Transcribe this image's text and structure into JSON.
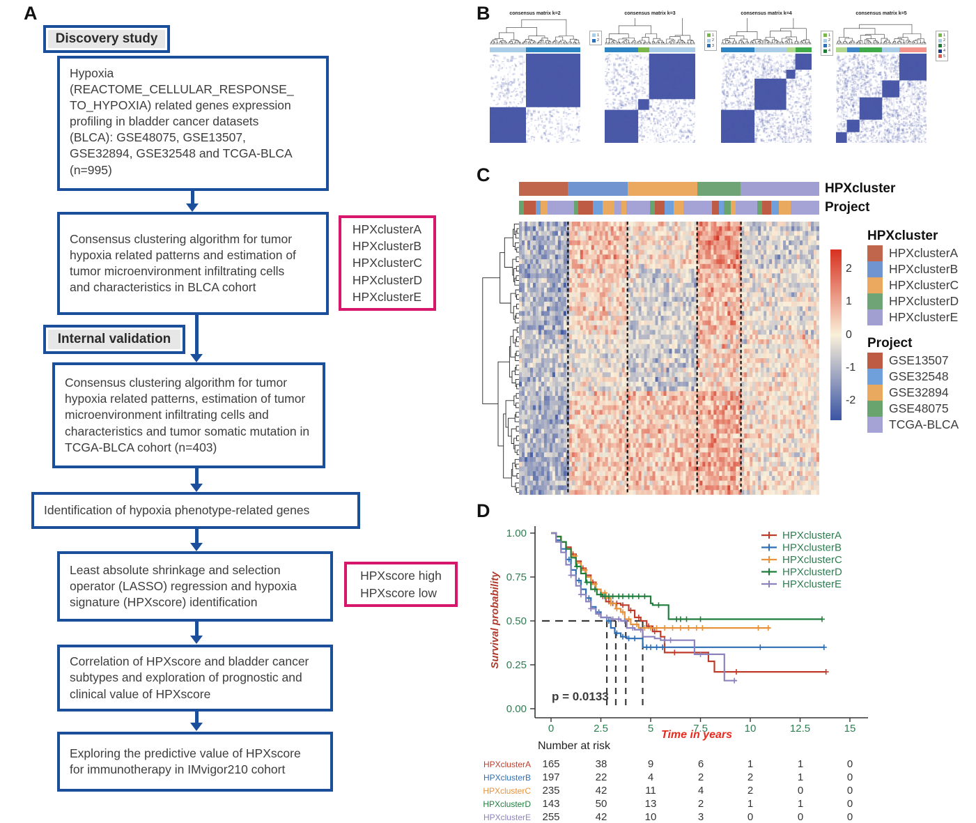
{
  "panels": {
    "a": "A",
    "b": "B",
    "c": "C",
    "d": "D"
  },
  "flowchart": {
    "stage1_label": "Discovery study",
    "stage2_label": "Internal validation",
    "boxes": [
      {
        "text": "Hypoxia\n(REACTOME_CELLULAR_RESPONSE_\nTO_HYPOXIA) related genes expression\nprofiling in bladder cancer datasets\n(BLCA): GSE48075, GSE13507,\nGSE32894, GSE32548 and TCGA-BLCA\n(n=995)"
      },
      {
        "text": "Consensus clustering algorithm for tumor\nhypoxia related patterns and estimation of\ntumor microenvironment infiltrating cells\nand characteristics in BLCA cohort"
      },
      {
        "text": "Consensus clustering algorithm for tumor\nhypoxia related patterns, estimation of tumor\nmicroenvironment infiltrating cells and\ncharacteristics and tumor somatic mutation in\nTCGA-BLCA cohort (n=403)"
      },
      {
        "text": "Identification of hypoxia phenotype-related genes"
      },
      {
        "text": "Least absolute shrinkage and selection\noperator (LASSO) regression and hypoxia\nsignature (HPXscore) identification"
      },
      {
        "text": "Correlation of HPXscore and bladder cancer\nsubtypes and exploration of prognostic and\nclinical value of HPXscore"
      },
      {
        "text": "Exploring the predictive value of HPXscore\nfor immunotherapy in IMvigor210 cohort"
      }
    ],
    "cluster_outputs": [
      "HPXclusterA",
      "HPXclusterB",
      "HPXclusterC",
      "HPXclusterD",
      "HPXclusterE"
    ],
    "score_outputs": [
      "HPXscore high",
      "HPXscore low"
    ]
  },
  "chart_data": [
    {
      "type": "heatmap",
      "name": "consensus-matrix-k2",
      "title": "consensus matrix k=2",
      "k": 2,
      "fractions": [
        0.4,
        0.6
      ],
      "bar_colors": [
        "#a9cde6",
        "#2d86c3"
      ],
      "legend_labels": [
        "1",
        "2"
      ],
      "legend_colors": [
        "#a9cde6",
        "#2d6fb7"
      ]
    },
    {
      "type": "heatmap",
      "name": "consensus-matrix-k3",
      "title": "consensus matrix k=3",
      "k": 3,
      "fractions": [
        0.37,
        0.12,
        0.51
      ],
      "bar_colors": [
        "#2d86c3",
        "#7ab648",
        "#a9cde6"
      ],
      "legend_labels": [
        "1",
        "2",
        "3"
      ],
      "legend_colors": [
        "#7ab648",
        "#a9cde6",
        "#2d6fb7"
      ]
    },
    {
      "type": "heatmap",
      "name": "consensus-matrix-k4",
      "title": "consensus matrix k=4",
      "k": 4,
      "fractions": [
        0.37,
        0.35,
        0.1,
        0.18
      ],
      "bar_colors": [
        "#2d86c3",
        "#a9cde6",
        "#b2d78f",
        "#3faa49"
      ],
      "legend_labels": [
        "1",
        "2",
        "3",
        "4"
      ],
      "legend_colors": [
        "#7ab648",
        "#a9cde6",
        "#2d6fb7",
        "#1e7d34"
      ]
    },
    {
      "type": "heatmap",
      "name": "consensus-matrix-k5",
      "title": "consensus matrix k=5",
      "k": 5,
      "fractions": [
        0.12,
        0.14,
        0.25,
        0.19,
        0.3
      ],
      "bar_colors": [
        "#b2d78f",
        "#3d85c6",
        "#3faa49",
        "#a9cde6",
        "#f2938c"
      ],
      "legend_labels": [
        "1",
        "2",
        "3",
        "4",
        "5"
      ],
      "legend_colors": [
        "#7ab648",
        "#a9cde6",
        "#1e7d34",
        "#1b3f8f",
        "#e05a4e"
      ]
    },
    {
      "type": "heatmap",
      "name": "expression-heatmap",
      "cluster_bar": {
        "label": "HPXcluster",
        "segments": [
          {
            "name": "HPXclusterA",
            "color": "#c0664d",
            "fraction": 0.163
          },
          {
            "name": "HPXclusterB",
            "color": "#6f94cf",
            "fraction": 0.198
          },
          {
            "name": "HPXclusterC",
            "color": "#eaa95f",
            "fraction": 0.232
          },
          {
            "name": "HPXclusterD",
            "color": "#6fa476",
            "fraction": 0.146
          },
          {
            "name": "HPXclusterE",
            "color": "#a19fd1",
            "fraction": 0.261
          }
        ]
      },
      "project_bar": {
        "label": "Project",
        "colors": {
          "R": "#bd5b44",
          "B": "#6fa0dc",
          "O": "#e9a95f",
          "G": "#69a36e",
          "P": "#a5a3d6"
        },
        "segments": [
          [
            "G",
            2
          ],
          [
            "R",
            5
          ],
          [
            "B",
            2
          ],
          [
            "O",
            3
          ],
          [
            "P",
            11
          ],
          [
            "G",
            2
          ],
          [
            "R",
            6
          ],
          [
            "B",
            4
          ],
          [
            "O",
            5
          ],
          [
            "P",
            3
          ],
          [
            "O",
            2
          ],
          [
            "P",
            10
          ],
          [
            "G",
            2
          ],
          [
            "R",
            4
          ],
          [
            "B",
            4
          ],
          [
            "O",
            4
          ],
          [
            "P",
            12
          ],
          [
            "R",
            3
          ],
          [
            "B",
            2
          ],
          [
            "G",
            3
          ],
          [
            "O",
            2
          ],
          [
            "P",
            9
          ],
          [
            "G",
            2
          ],
          [
            "R",
            4
          ],
          [
            "B",
            3
          ],
          [
            "O",
            5
          ],
          [
            "P",
            12
          ]
        ]
      },
      "row_bias": {
        "bands": [
          0.18,
          0.42,
          0.62,
          1.0
        ],
        "A": [
          -0.9,
          -1.0,
          -0.7,
          -1.0
        ],
        "B": [
          0.6,
          0.35,
          -0.2,
          0.45
        ],
        "C": [
          0.15,
          -0.45,
          -0.55,
          0.55
        ],
        "D": [
          1.2,
          0.65,
          0.35,
          0.9
        ],
        "E": [
          -0.5,
          -0.15,
          0.05,
          0.1
        ]
      },
      "separators": [
        0.163,
        0.361,
        0.593,
        0.739
      ],
      "color_scale": {
        "tick_labels": [
          "2",
          "1",
          "0",
          "-1",
          "-2"
        ],
        "tick_values": [
          2,
          1,
          0,
          -1,
          -2
        ],
        "vmax": 2.6,
        "vmin": -2.6,
        "max_color": "#d7301f",
        "mid_color": "#faf0da",
        "min_color": "#3a54a4"
      },
      "cluster_legend": {
        "title": "HPXcluster",
        "items": [
          {
            "label": "HPXclusterA",
            "color": "#c0664d"
          },
          {
            "label": "HPXclusterB",
            "color": "#6f94cf"
          },
          {
            "label": "HPXclusterC",
            "color": "#eaa95f"
          },
          {
            "label": "HPXclusterD",
            "color": "#6fa476"
          },
          {
            "label": "HPXclusterE",
            "color": "#a19fd1"
          }
        ]
      },
      "project_legend": {
        "title": "Project",
        "items": [
          {
            "label": "GSE13507",
            "color": "#bd5b44"
          },
          {
            "label": "GSE32548",
            "color": "#6fa0dc"
          },
          {
            "label": "GSE32894",
            "color": "#e9a95f"
          },
          {
            "label": "GSE48075",
            "color": "#69a36e"
          },
          {
            "label": "TCGA-BLCA",
            "color": "#a5a3d6"
          }
        ]
      }
    },
    {
      "type": "line",
      "name": "kaplan-meier-survival",
      "ylabel": "Survival probability",
      "xlabel": "Time in years",
      "p_value": "p = 0.0133",
      "xlim": [
        0,
        15
      ],
      "ylim": [
        0,
        1
      ],
      "xtick_values": [
        0,
        2.5,
        5,
        7.5,
        10,
        12.5,
        15
      ],
      "xtick_labels": [
        "0",
        "2.5",
        "5",
        "7.5",
        "10",
        "12.5",
        "15"
      ],
      "ytick_values": [
        1.0,
        0.75,
        0.5,
        0.25,
        0.0
      ],
      "ytick_labels": [
        "1.00",
        "0.75",
        "0.50",
        "0.25",
        "0.00"
      ],
      "median_lines": {
        "y": 0.5,
        "x_values": [
          2.8,
          3.25,
          3.75,
          4.6
        ]
      },
      "legend_text_color": "#2e7d50",
      "series": [
        {
          "name": "HPXclusterA",
          "color": "#c13b2a",
          "steps": [
            [
              0,
              1
            ],
            [
              0.25,
              0.98
            ],
            [
              0.5,
              0.95
            ],
            [
              0.75,
              0.92
            ],
            [
              1,
              0.88
            ],
            [
              1.25,
              0.84
            ],
            [
              1.5,
              0.8
            ],
            [
              1.75,
              0.76
            ],
            [
              2,
              0.72
            ],
            [
              2.25,
              0.68
            ],
            [
              2.5,
              0.64
            ],
            [
              2.75,
              0.61
            ],
            [
              3,
              0.6
            ],
            [
              3.5,
              0.59
            ],
            [
              3.9,
              0.56
            ],
            [
              4.2,
              0.52
            ],
            [
              4.5,
              0.5
            ],
            [
              4.8,
              0.47
            ],
            [
              5.1,
              0.44
            ],
            [
              5.5,
              0.41
            ],
            [
              5.7,
              0.32
            ],
            [
              7.9,
              0.27
            ],
            [
              8.2,
              0.21
            ],
            [
              13.8,
              0.21
            ]
          ],
          "censors": [
            1.1,
            1.6,
            2.1,
            2.6,
            2.9,
            3.1,
            3.3,
            3.6,
            4.0,
            4.4,
            4.9,
            5.2,
            6.2,
            9.3,
            13.8
          ]
        },
        {
          "name": "HPXclusterB",
          "color": "#2e6eb5",
          "steps": [
            [
              0,
              1
            ],
            [
              0.25,
              0.96
            ],
            [
              0.5,
              0.91
            ],
            [
              0.75,
              0.85
            ],
            [
              1,
              0.79
            ],
            [
              1.25,
              0.73
            ],
            [
              1.5,
              0.68
            ],
            [
              1.75,
              0.63
            ],
            [
              2,
              0.58
            ],
            [
              2.25,
              0.55
            ],
            [
              2.5,
              0.52
            ],
            [
              2.8,
              0.5
            ],
            [
              3.0,
              0.46
            ],
            [
              3.2,
              0.43
            ],
            [
              3.5,
              0.41
            ],
            [
              3.8,
              0.4
            ],
            [
              4.4,
              0.4
            ],
            [
              4.6,
              0.35
            ],
            [
              13.7,
              0.35
            ]
          ],
          "censors": [
            0.9,
            1.4,
            1.9,
            2.4,
            2.9,
            3.3,
            3.6,
            3.9,
            4.2,
            4.8,
            5.0,
            5.3,
            5.6,
            10.5,
            13.7
          ]
        },
        {
          "name": "HPXclusterC",
          "color": "#e8923d",
          "steps": [
            [
              0,
              1
            ],
            [
              0.25,
              0.98
            ],
            [
              0.5,
              0.95
            ],
            [
              0.75,
              0.91
            ],
            [
              1,
              0.87
            ],
            [
              1.25,
              0.83
            ],
            [
              1.5,
              0.79
            ],
            [
              1.75,
              0.75
            ],
            [
              2,
              0.71
            ],
            [
              2.25,
              0.68
            ],
            [
              2.5,
              0.66
            ],
            [
              2.75,
              0.63
            ],
            [
              3,
              0.6
            ],
            [
              3.25,
              0.57
            ],
            [
              3.5,
              0.55
            ],
            [
              3.7,
              0.51
            ],
            [
              4,
              0.48
            ],
            [
              4.4,
              0.46
            ],
            [
              11,
              0.46
            ]
          ],
          "censors": [
            1.2,
            1.7,
            2.2,
            2.7,
            3.0,
            3.3,
            3.6,
            3.9,
            4.3,
            4.7,
            5.0,
            5.3,
            5.7,
            6.1,
            6.5,
            6.9,
            7.3,
            7.6,
            10.4,
            10.9
          ]
        },
        {
          "name": "HPXclusterD",
          "color": "#1f7d3c",
          "steps": [
            [
              0,
              1
            ],
            [
              0.25,
              0.98
            ],
            [
              0.5,
              0.95
            ],
            [
              0.75,
              0.91
            ],
            [
              1,
              0.86
            ],
            [
              1.25,
              0.81
            ],
            [
              1.5,
              0.77
            ],
            [
              1.75,
              0.72
            ],
            [
              2,
              0.68
            ],
            [
              2.3,
              0.65
            ],
            [
              2.6,
              0.64
            ],
            [
              4.8,
              0.64
            ],
            [
              5.0,
              0.6
            ],
            [
              5.1,
              0.59
            ],
            [
              5.7,
              0.59
            ],
            [
              5.9,
              0.51
            ],
            [
              13.6,
              0.51
            ]
          ],
          "censors": [
            1.3,
            1.8,
            2.2,
            2.5,
            2.7,
            2.9,
            3.1,
            3.4,
            3.6,
            3.9,
            4.1,
            4.4,
            4.7,
            5.4,
            6.3,
            6.5,
            6.8,
            7.5,
            13.6
          ]
        },
        {
          "name": "HPXclusterE",
          "color": "#8b83bd",
          "steps": [
            [
              0,
              1
            ],
            [
              0.25,
              0.95
            ],
            [
              0.5,
              0.89
            ],
            [
              0.75,
              0.82
            ],
            [
              1,
              0.76
            ],
            [
              1.25,
              0.7
            ],
            [
              1.5,
              0.65
            ],
            [
              1.75,
              0.61
            ],
            [
              2,
              0.57
            ],
            [
              2.25,
              0.54
            ],
            [
              2.5,
              0.52
            ],
            [
              3.0,
              0.51
            ],
            [
              3.5,
              0.5
            ],
            [
              3.8,
              0.46
            ],
            [
              4.2,
              0.45
            ],
            [
              4.6,
              0.41
            ],
            [
              5.2,
              0.4
            ],
            [
              5.5,
              0.39
            ],
            [
              7.2,
              0.31
            ],
            [
              8.5,
              0.31
            ],
            [
              8.7,
              0.16
            ],
            [
              9.3,
              0.16
            ]
          ],
          "censors": [
            1.0,
            1.5,
            2.0,
            2.4,
            2.8,
            3.1,
            3.4,
            3.7,
            4.1,
            4.5,
            5.7,
            6.0,
            7.5,
            9.2
          ]
        }
      ]
    },
    {
      "type": "table",
      "name": "number-at-risk",
      "title": "Number at risk",
      "time_points": [
        0,
        2.5,
        5,
        7.5,
        10,
        12.5,
        15
      ],
      "rows": [
        {
          "label": "HPXclusterA",
          "color": "#c13b2a",
          "values": [
            165,
            38,
            9,
            6,
            1,
            1,
            0
          ]
        },
        {
          "label": "HPXclusterB",
          "color": "#2e6eb5",
          "values": [
            197,
            22,
            4,
            2,
            2,
            1,
            0
          ]
        },
        {
          "label": "HPXclusterC",
          "color": "#e8923d",
          "values": [
            235,
            42,
            11,
            4,
            2,
            0,
            0
          ]
        },
        {
          "label": "HPXclusterD",
          "color": "#1f7d3c",
          "values": [
            143,
            50,
            13,
            2,
            1,
            1,
            0
          ]
        },
        {
          "label": "HPXclusterE",
          "color": "#8b83bd",
          "values": [
            255,
            42,
            10,
            3,
            0,
            0,
            0
          ]
        }
      ]
    }
  ]
}
